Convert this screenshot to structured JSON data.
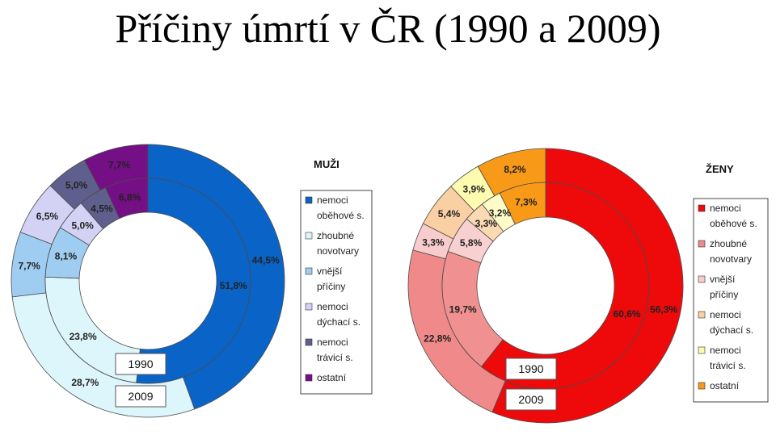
{
  "title": "Příčiny úmrtí v ČR (1990 a 2009)",
  "chart_data": [
    {
      "type": "pie",
      "variant": "double-donut",
      "legend_title": "MUŽI",
      "categories": [
        "nemoci oběhové s.",
        "zhoubné novotvary",
        "vnější příčiny",
        "nemoci dýchací s.",
        "nemoci trávicí s.",
        "ostatní"
      ],
      "legend_lines": [
        [
          "nemoci",
          "oběhové s."
        ],
        [
          "zhoubné",
          "novotvary"
        ],
        [
          "vnější",
          "příčiny"
        ],
        [
          "nemoci",
          "dýchací s."
        ],
        [
          "nemoci",
          "trávicí s."
        ],
        [
          "ostatní"
        ]
      ],
      "series": [
        {
          "name": "1990",
          "ring": "inner",
          "values": [
            51.8,
            23.8,
            8.1,
            5.0,
            4.5,
            6.8
          ],
          "labels": [
            "51,8%",
            "23,8%",
            "8,1%",
            "5,0%",
            "4,5%",
            "6,8%"
          ]
        },
        {
          "name": "2009",
          "ring": "outer",
          "values": [
            44.5,
            28.7,
            7.7,
            6.5,
            5.0,
            7.7
          ],
          "labels": [
            "44,5%",
            "28,7%",
            "7,7%",
            "6,5%",
            "5,0%",
            "7,7%"
          ]
        }
      ],
      "colors": {
        "inner": [
          "#0a64c8",
          "#ddf6fb",
          "#9fcdf2",
          "#d4d2f4",
          "#5f5f8e",
          "#740f86"
        ],
        "outer": [
          "#0a64c8",
          "#ddf6fb",
          "#9fcdf2",
          "#d4d2f4",
          "#5f5f8e",
          "#740f86"
        ]
      },
      "legend_colors": [
        "#0a64c8",
        "#ddf6fb",
        "#9fcdf2",
        "#d4d2f4",
        "#5f5f8e",
        "#740f86"
      ],
      "legend_position": "right"
    },
    {
      "type": "pie",
      "variant": "double-donut",
      "legend_title": "ŽENY",
      "categories": [
        "nemoci oběhové s.",
        "zhoubné novotvary",
        "vnější příčiny",
        "nemoci dýchací s.",
        "nemoci trávicí s.",
        "ostatní"
      ],
      "legend_lines": [
        [
          "nemoci",
          "oběhové s."
        ],
        [
          "zhoubné",
          "novotvary"
        ],
        [
          "vnější",
          "příčiny"
        ],
        [
          "nemoci",
          "dýchací s."
        ],
        [
          "nemoci",
          "trávicí s."
        ],
        [
          "ostatní"
        ]
      ],
      "series": [
        {
          "name": "1990",
          "ring": "inner",
          "values": [
            60.6,
            19.7,
            5.8,
            3.3,
            3.2,
            7.3
          ],
          "labels": [
            "60,6%",
            "19,7%",
            "5,8%",
            "3,3%",
            "3,2%",
            "7,3%"
          ]
        },
        {
          "name": "2009",
          "ring": "outer",
          "values": [
            56.3,
            22.8,
            3.3,
            5.4,
            3.9,
            8.2
          ],
          "labels": [
            "56,3%",
            "22,8%",
            "3,3%",
            "5,4%",
            "3,9%",
            "8,2%"
          ]
        }
      ],
      "colors": {
        "inner": [
          "#ee0a0a",
          "#f09090",
          "#f8d0d0",
          "#fbd9b3",
          "#fdfbc8",
          "#f89a18"
        ],
        "outer": [
          "#ee0a0a",
          "#f08a8a",
          "#f8cccc",
          "#f9cfa3",
          "#fdfbb0",
          "#f89a18"
        ]
      },
      "legend_colors": [
        "#ee0a0a",
        "#f08a8a",
        "#f8cccc",
        "#f9cfa3",
        "#fdfbb0",
        "#f89a18"
      ],
      "legend_position": "right"
    }
  ]
}
